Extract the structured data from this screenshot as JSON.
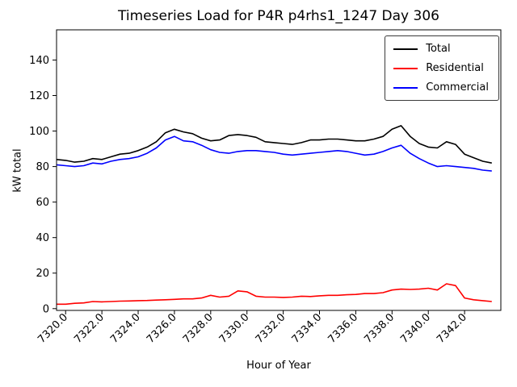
{
  "chart_data": {
    "type": "line",
    "title": "Timeseries Load for P4R p4rhs1_1247  Day 306",
    "xlabel": "Hour of Year",
    "ylabel": "kW total",
    "xlim": [
      7319.5,
      7344.0
    ],
    "ylim": [
      -1,
      157
    ],
    "grid": false,
    "legend_position": "upper right",
    "xticks": [
      7320,
      7322,
      7324,
      7326,
      7328,
      7330,
      7332,
      7334,
      7336,
      7338,
      7340,
      7342
    ],
    "xtick_labels": [
      "7320.0",
      "7322.0",
      "7324.0",
      "7326.0",
      "7328.0",
      "7330.0",
      "7332.0",
      "7334.0",
      "7336.0",
      "7338.0",
      "7340.0",
      "7342.0"
    ],
    "yticks": [
      0,
      20,
      40,
      60,
      80,
      100,
      120,
      140
    ],
    "ytick_labels": [
      "0",
      "20",
      "40",
      "60",
      "80",
      "100",
      "120",
      "140"
    ],
    "x": [
      7319.5,
      7320.0,
      7320.5,
      7321.0,
      7321.5,
      7322.0,
      7322.5,
      7323.0,
      7323.5,
      7324.0,
      7324.5,
      7325.0,
      7325.5,
      7326.0,
      7326.5,
      7327.0,
      7327.5,
      7328.0,
      7328.5,
      7329.0,
      7329.5,
      7330.0,
      7330.5,
      7331.0,
      7331.5,
      7332.0,
      7332.5,
      7333.0,
      7333.5,
      7334.0,
      7334.5,
      7335.0,
      7335.5,
      7336.0,
      7336.5,
      7337.0,
      7337.5,
      7338.0,
      7338.5,
      7339.0,
      7339.5,
      7340.0,
      7340.5,
      7341.0,
      7341.5,
      7342.0,
      7342.5,
      7343.0,
      7343.5
    ],
    "series": [
      {
        "name": "Total",
        "color": "#000000",
        "values": [
          84,
          83.5,
          82.5,
          83,
          84.5,
          84,
          85.5,
          87,
          87.5,
          89,
          91,
          94,
          99,
          101,
          99.5,
          98.5,
          96,
          94.5,
          95,
          97.5,
          98,
          97.5,
          96.5,
          94,
          93.5,
          93,
          92.5,
          93.5,
          95,
          95,
          95.5,
          95.5,
          95,
          94.5,
          94.5,
          95.5,
          97,
          101,
          103,
          97,
          93,
          91,
          90.5,
          94,
          92.5,
          87,
          85,
          83,
          82
        ]
      },
      {
        "name": "Residential",
        "color": "#ff0000",
        "values": [
          2.5,
          2.5,
          3,
          3.2,
          4,
          3.8,
          4,
          4.2,
          4.3,
          4.5,
          4.6,
          4.8,
          5,
          5.2,
          5.5,
          5.5,
          6,
          7.5,
          6.5,
          7,
          10,
          9.5,
          7,
          6.5,
          6.5,
          6.3,
          6.5,
          7,
          6.8,
          7.2,
          7.5,
          7.5,
          7.8,
          8,
          8.5,
          8.5,
          9,
          10.5,
          11,
          10.8,
          11,
          11.5,
          10.5,
          14,
          13,
          6,
          5,
          4.5,
          4
        ]
      },
      {
        "name": "Commercial",
        "color": "#0000ff",
        "values": [
          81,
          80.5,
          80,
          80.5,
          82,
          81.5,
          83,
          84,
          84.5,
          85.5,
          87.5,
          90.5,
          95,
          97,
          94.5,
          94,
          92,
          89.5,
          88,
          87.5,
          88.5,
          89,
          89,
          88.5,
          88,
          87,
          86.5,
          87,
          87.5,
          88,
          88.5,
          89,
          88.5,
          87.5,
          86.5,
          87,
          88.5,
          90.5,
          92,
          87.5,
          84.5,
          82,
          80,
          80.5,
          80,
          79.5,
          79,
          78,
          77.5
        ]
      }
    ]
  }
}
